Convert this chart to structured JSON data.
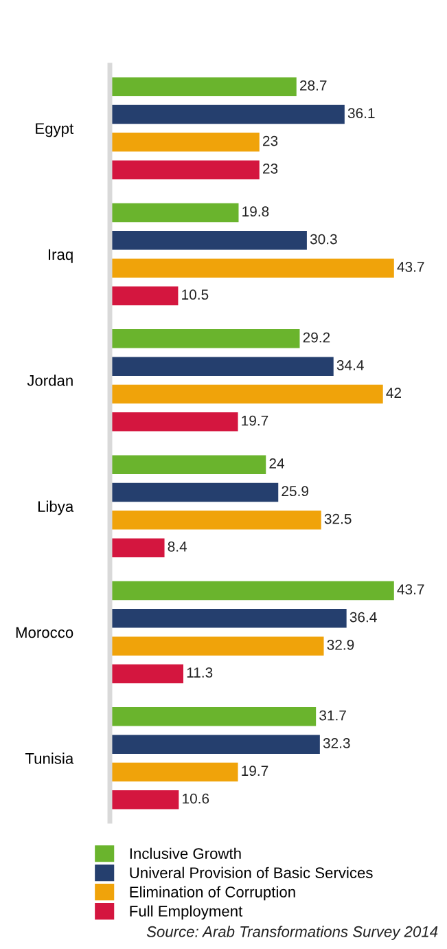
{
  "chart_data": {
    "type": "bar",
    "orientation": "horizontal",
    "categories": [
      "Egypt",
      "Iraq",
      "Jordan",
      "Libya",
      "Morocco",
      "Tunisia"
    ],
    "series": [
      {
        "name": "Inclusive Growth",
        "color": "#6ab42d",
        "values": [
          28.7,
          19.8,
          29.2,
          24,
          43.7,
          31.7
        ]
      },
      {
        "name": "Univeral Provision of Basic Services",
        "color": "#253f6e",
        "values": [
          36.1,
          30.3,
          34.4,
          25.9,
          36.4,
          32.3
        ]
      },
      {
        "name": "Elimination of Corruption",
        "color": "#f0a30a",
        "values": [
          23,
          43.7,
          42,
          32.5,
          32.9,
          19.7
        ]
      },
      {
        "name": "Full Employment",
        "color": "#d4163f",
        "values": [
          23,
          10.5,
          19.7,
          8.4,
          11.3,
          10.6
        ]
      }
    ],
    "tick_labels": "y",
    "data_labels": true,
    "legend": "bottom",
    "grid": false,
    "annotations": [
      "Source: Arab Transformations Survey 2014"
    ]
  }
}
